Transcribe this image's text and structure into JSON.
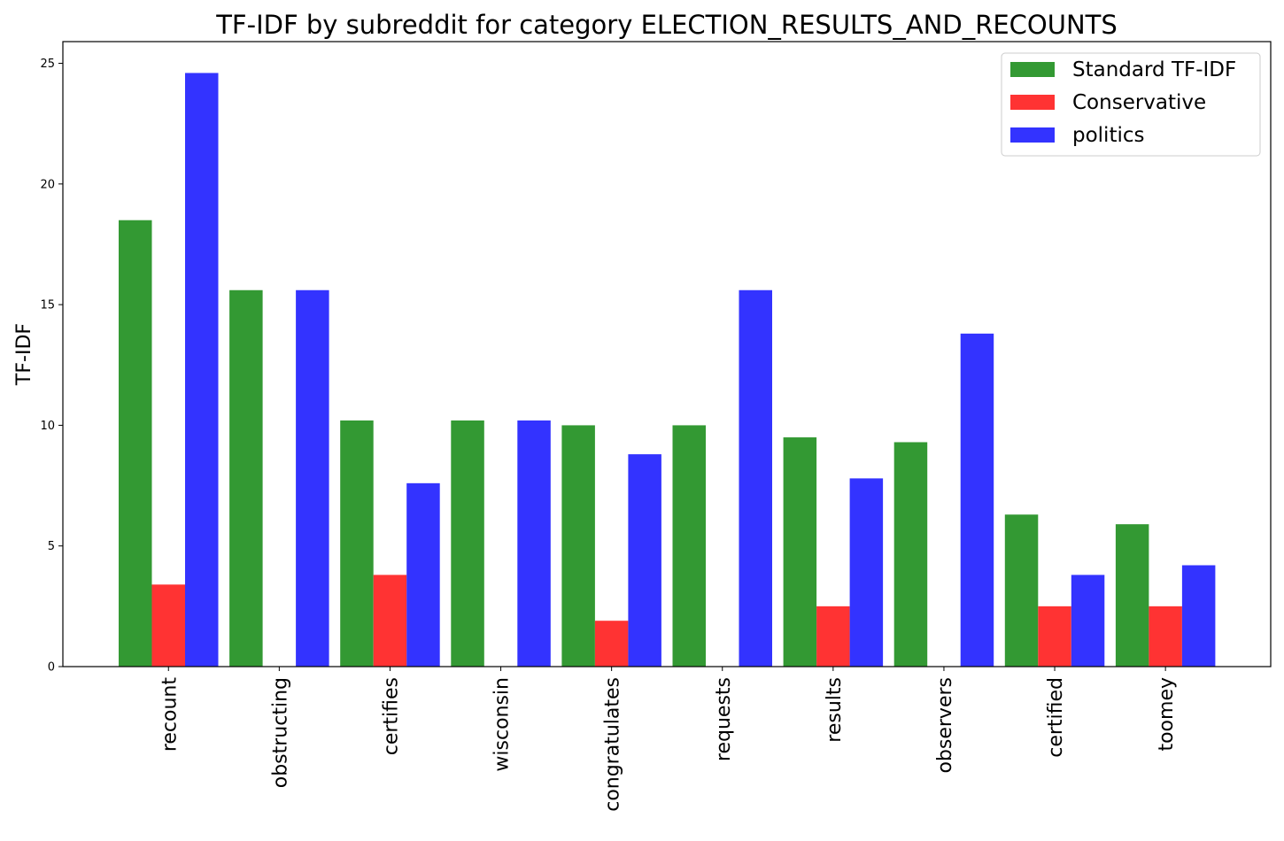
{
  "chart_data": {
    "type": "bar",
    "title": "TF-IDF by subreddit for category ELECTION_RESULTS_AND_RECOUNTS",
    "xlabel": "",
    "ylabel": "TF-IDF",
    "ylim": [
      0,
      25.9
    ],
    "yticks": [
      0,
      5,
      10,
      15,
      20,
      25
    ],
    "grid": false,
    "legend_position": "top-right",
    "categories": [
      "recount",
      "obstructing",
      "certifies",
      "wisconsin",
      "congratulates",
      "requests",
      "results",
      "observers",
      "certified",
      "toomey"
    ],
    "series": [
      {
        "name": "Standard TF-IDF",
        "color": "#339933",
        "values": [
          18.5,
          15.6,
          10.2,
          10.2,
          10.0,
          10.0,
          9.5,
          9.3,
          6.3,
          5.9
        ]
      },
      {
        "name": "Conservative",
        "color": "#ff3333",
        "values": [
          3.4,
          0,
          3.8,
          0,
          1.9,
          0,
          2.5,
          0,
          2.5,
          2.5
        ]
      },
      {
        "name": "politics",
        "color": "#3333ff",
        "values": [
          24.6,
          15.6,
          7.6,
          10.2,
          8.8,
          15.6,
          7.8,
          13.8,
          3.8,
          4.2
        ]
      }
    ]
  }
}
